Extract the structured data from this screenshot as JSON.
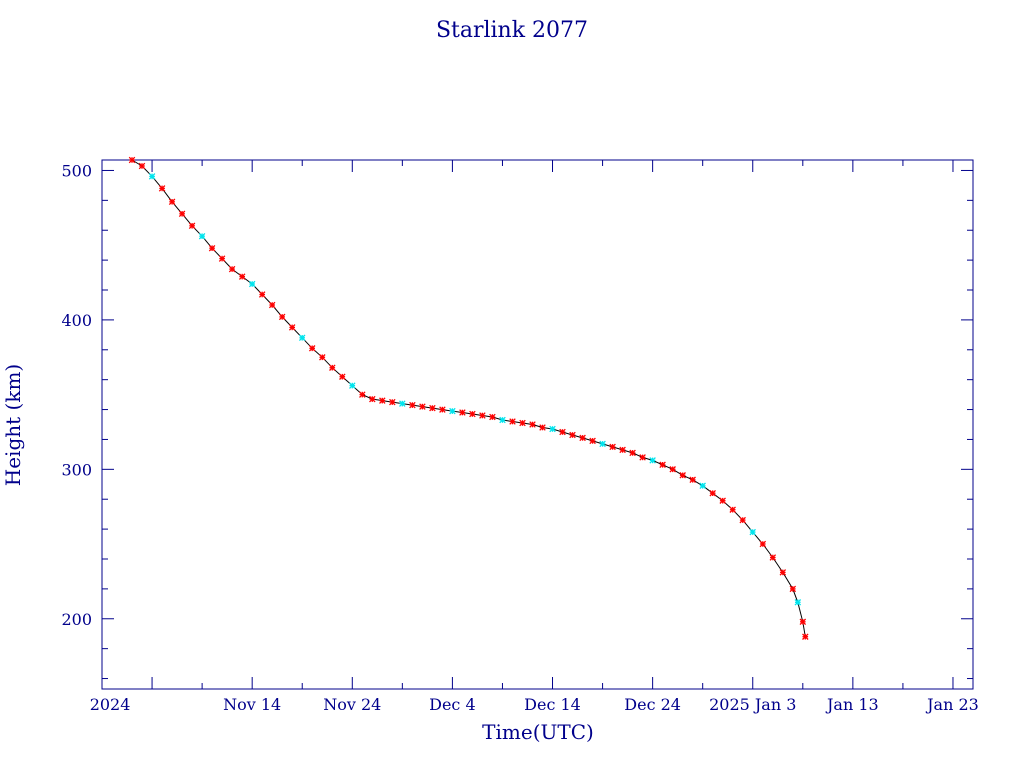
{
  "chart_data": {
    "type": "scatter",
    "title": "Starlink 2077",
    "xlabel": "Time(UTC)",
    "ylabel": "Height (km)",
    "x_unit": "date",
    "xlim": [
      "2024-10-30",
      "2025-01-25"
    ],
    "ylim": [
      153,
      507
    ],
    "x_tick_labels": [
      "2024",
      "Nov 14",
      "Nov 24",
      "Dec  4",
      "Dec 14",
      "Dec 24",
      "2025 Jan  3",
      "Jan 13",
      "Jan 23"
    ],
    "y_ticks": [
      200,
      300,
      400,
      500
    ],
    "colors": {
      "axis": "#00008b",
      "line": "#000000",
      "points": "#ff0000",
      "points_alt": "#00e5ee"
    },
    "series": [
      {
        "points": [
          [
            "2024-11-02",
            507
          ],
          [
            "2024-11-03",
            503
          ],
          [
            "2024-11-04",
            496
          ],
          [
            "2024-11-05",
            488
          ],
          [
            "2024-11-06",
            479
          ],
          [
            "2024-11-07",
            471
          ],
          [
            "2024-11-08",
            463
          ],
          [
            "2024-11-09",
            456
          ],
          [
            "2024-11-10",
            448
          ],
          [
            "2024-11-11",
            441
          ],
          [
            "2024-11-12",
            434
          ],
          [
            "2024-11-13",
            429
          ],
          [
            "2024-11-14",
            424
          ],
          [
            "2024-11-15",
            417
          ],
          [
            "2024-11-16",
            410
          ],
          [
            "2024-11-17",
            402
          ],
          [
            "2024-11-18",
            395
          ],
          [
            "2024-11-19",
            388
          ],
          [
            "2024-11-20",
            381
          ],
          [
            "2024-11-21",
            375
          ],
          [
            "2024-11-22",
            368
          ],
          [
            "2024-11-23",
            362
          ],
          [
            "2024-11-24",
            356
          ],
          [
            "2024-11-25",
            350
          ],
          [
            "2024-11-26",
            347
          ],
          [
            "2024-11-27",
            346
          ],
          [
            "2024-11-28",
            345
          ],
          [
            "2024-11-29",
            344
          ],
          [
            "2024-11-30",
            343
          ],
          [
            "2024-12-01",
            342
          ],
          [
            "2024-12-02",
            341
          ],
          [
            "2024-12-03",
            340
          ],
          [
            "2024-12-04",
            339
          ],
          [
            "2024-12-05",
            338
          ],
          [
            "2024-12-06",
            337
          ],
          [
            "2024-12-07",
            336
          ],
          [
            "2024-12-08",
            335
          ],
          [
            "2024-12-09",
            333
          ],
          [
            "2024-12-10",
            332
          ],
          [
            "2024-12-11",
            331
          ],
          [
            "2024-12-12",
            330
          ],
          [
            "2024-12-13",
            328
          ],
          [
            "2024-12-14",
            327
          ],
          [
            "2024-12-15",
            325
          ],
          [
            "2024-12-16",
            323
          ],
          [
            "2024-12-17",
            321
          ],
          [
            "2024-12-18",
            319
          ],
          [
            "2024-12-19",
            317
          ],
          [
            "2024-12-20",
            315
          ],
          [
            "2024-12-21",
            313
          ],
          [
            "2024-12-22",
            311
          ],
          [
            "2024-12-23",
            308
          ],
          [
            "2024-12-24",
            306
          ],
          [
            "2024-12-25",
            303
          ],
          [
            "2024-12-26",
            300
          ],
          [
            "2024-12-27",
            296
          ],
          [
            "2024-12-28",
            293
          ],
          [
            "2024-12-29",
            289
          ],
          [
            "2024-12-30",
            284
          ],
          [
            "2024-12-31",
            279
          ],
          [
            "2025-01-01",
            273
          ],
          [
            "2025-01-02",
            266
          ],
          [
            "2025-01-03",
            258
          ],
          [
            "2025-01-04",
            250
          ],
          [
            "2025-01-05",
            241
          ],
          [
            "2025-01-06",
            231
          ],
          [
            "2025-01-07",
            220
          ],
          [
            "2025-01-07T12:00",
            211
          ],
          [
            "2025-01-08",
            198
          ],
          [
            "2025-01-08T06:00",
            188
          ]
        ]
      }
    ]
  }
}
